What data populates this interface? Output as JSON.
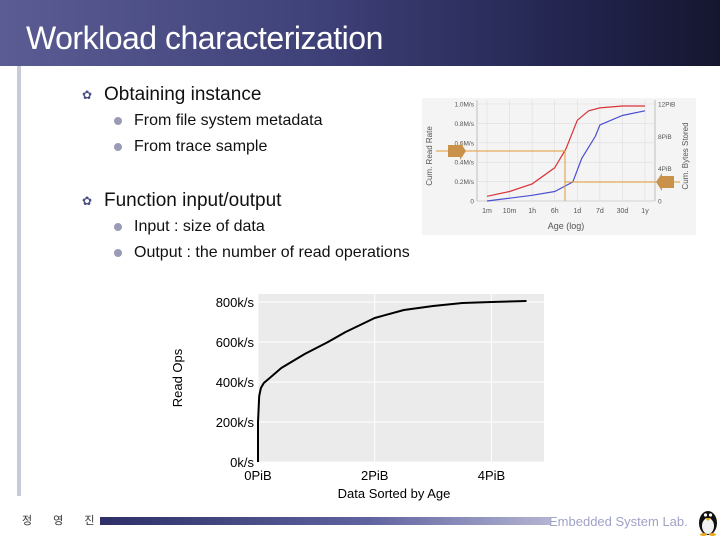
{
  "slide": {
    "title": "Workload characterization"
  },
  "bullets": [
    {
      "text": "Obtaining instance",
      "subs": [
        "From file system metadata",
        "From trace sample"
      ]
    },
    {
      "text": "Function input/output",
      "subs": [
        "Input : size of data",
        "Output : the number of read operations"
      ]
    }
  ],
  "footer": {
    "author": "정 영 진",
    "lab": "Embedded System Lab."
  },
  "colors": {
    "title_bar": "#3e4078",
    "red_series": "#d9333a",
    "blue_series": "#4b4fd1",
    "guide": "#e39a38"
  },
  "chart_data": [
    {
      "type": "line",
      "title": "",
      "xlabel": "Age (log)",
      "ylabel": "Cum. Read Rate",
      "y2label": "Cum. Bytes Stored",
      "x_ticks": [
        "1m",
        "10m",
        "1h",
        "6h",
        "1d",
        "7d",
        "30d",
        "1y"
      ],
      "y_ticks": [
        "0",
        "0.2M/s",
        "0.4M/s",
        "0.6M/s",
        "0.8M/s",
        "1.0M/s"
      ],
      "y2_ticks": [
        "0",
        "4PiB",
        "8PiB",
        "12PiB"
      ],
      "series": [
        {
          "color": "#d9333a",
          "x": [
            0,
            1,
            2,
            3,
            3.5,
            4,
            4.5,
            5,
            6,
            7
          ],
          "y": [
            0.05,
            0.1,
            0.18,
            0.35,
            0.55,
            0.85,
            0.95,
            0.98,
            1.0,
            1.0
          ]
        },
        {
          "color": "#4b4fd1",
          "x": [
            0,
            1,
            2,
            3,
            3.8,
            4.2,
            4.8,
            5,
            6,
            7
          ],
          "y": [
            0.0,
            0.03,
            0.06,
            0.1,
            0.2,
            0.45,
            0.68,
            0.8,
            0.9,
            0.95
          ]
        }
      ]
    },
    {
      "type": "line",
      "title": "",
      "xlabel": "Data Sorted by Age",
      "ylabel": "Read Ops",
      "x_ticks": [
        "0PiB",
        "2PiB",
        "4PiB"
      ],
      "y_ticks": [
        "0k/s",
        "200k/s",
        "400k/s",
        "600k/s",
        "800k/s"
      ],
      "xlim": [
        0,
        4.9
      ],
      "ylim": [
        0,
        840
      ],
      "series": [
        {
          "x": [
            0.0,
            0.0,
            0.02,
            0.05,
            0.1,
            0.2,
            0.4,
            0.8,
            1.2,
            1.5,
            2.0,
            2.5,
            3.0,
            3.5,
            4.0,
            4.6
          ],
          "y": [
            0,
            200,
            330,
            370,
            395,
            420,
            470,
            540,
            600,
            650,
            720,
            760,
            780,
            795,
            800,
            805
          ]
        }
      ]
    }
  ]
}
